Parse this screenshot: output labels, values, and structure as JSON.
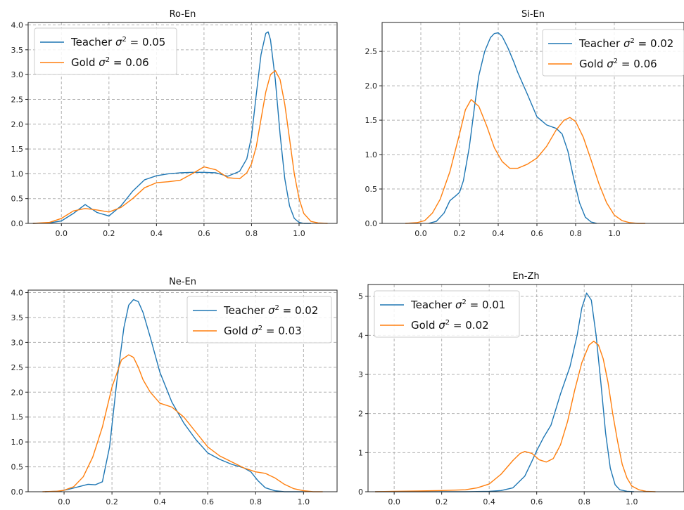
{
  "chart_data": [
    {
      "type": "line",
      "title": "Ro-En",
      "xlabel": "",
      "ylabel": "",
      "xlim": [
        -0.14,
        1.16
      ],
      "ylim": [
        0,
        4.05
      ],
      "xticks": [
        "0.0",
        "0.2",
        "0.4",
        "0.6",
        "0.8",
        "1.0"
      ],
      "yticks": [
        "0.0",
        "0.5",
        "1.0",
        "1.5",
        "2.0",
        "2.5",
        "3.0",
        "3.5",
        "4.0"
      ],
      "grid": true,
      "legend": "top-left",
      "series": [
        {
          "name": "Teacher",
          "legend_value": "= 0.05",
          "color": "#1f77b4",
          "x": [
            -0.12,
            -0.05,
            0.0,
            0.05,
            0.1,
            0.15,
            0.2,
            0.25,
            0.3,
            0.35,
            0.4,
            0.45,
            0.5,
            0.55,
            0.6,
            0.65,
            0.7,
            0.75,
            0.78,
            0.8,
            0.82,
            0.84,
            0.86,
            0.87,
            0.88,
            0.9,
            0.92,
            0.94,
            0.96,
            0.98,
            1.0,
            1.02,
            1.05
          ],
          "y": [
            0,
            0.01,
            0.05,
            0.2,
            0.38,
            0.22,
            0.15,
            0.35,
            0.65,
            0.88,
            0.96,
            1.0,
            1.02,
            1.03,
            1.03,
            1.02,
            0.95,
            1.05,
            1.3,
            1.75,
            2.6,
            3.4,
            3.83,
            3.86,
            3.7,
            2.9,
            1.8,
            0.9,
            0.35,
            0.1,
            0.02,
            0,
            0
          ]
        },
        {
          "name": "Gold",
          "legend_value": "= 0.06",
          "color": "#ff7f0e",
          "x": [
            -0.12,
            -0.05,
            0.0,
            0.05,
            0.1,
            0.15,
            0.2,
            0.25,
            0.3,
            0.35,
            0.4,
            0.45,
            0.5,
            0.55,
            0.6,
            0.65,
            0.7,
            0.75,
            0.78,
            0.8,
            0.82,
            0.84,
            0.86,
            0.88,
            0.9,
            0.92,
            0.94,
            0.96,
            0.98,
            1.0,
            1.02,
            1.05,
            1.08,
            1.12
          ],
          "y": [
            0,
            0.02,
            0.1,
            0.25,
            0.3,
            0.27,
            0.23,
            0.32,
            0.5,
            0.72,
            0.82,
            0.84,
            0.87,
            1.0,
            1.14,
            1.08,
            0.92,
            0.9,
            1.02,
            1.2,
            1.55,
            2.1,
            2.65,
            3.0,
            3.08,
            2.9,
            2.4,
            1.7,
            1.0,
            0.5,
            0.2,
            0.04,
            0.01,
            0
          ]
        }
      ]
    },
    {
      "type": "line",
      "title": "Si-En",
      "xlabel": "",
      "ylabel": "",
      "xlim": [
        -0.2,
        1.36
      ],
      "ylim": [
        0,
        2.92
      ],
      "xticks": [
        "0.0",
        "0.2",
        "0.4",
        "0.6",
        "0.8",
        "1.0"
      ],
      "yticks": [
        "0.0",
        "0.5",
        "1.0",
        "1.5",
        "2.0",
        "2.5"
      ],
      "grid": true,
      "legend": "top-right",
      "series": [
        {
          "name": "Teacher",
          "legend_value": "= 0.02",
          "color": "#1f77b4",
          "x": [
            0.04,
            0.08,
            0.12,
            0.15,
            0.18,
            0.2,
            0.22,
            0.25,
            0.28,
            0.3,
            0.33,
            0.36,
            0.38,
            0.4,
            0.42,
            0.45,
            0.48,
            0.5,
            0.55,
            0.6,
            0.65,
            0.7,
            0.73,
            0.76,
            0.79,
            0.82,
            0.85,
            0.88,
            0.91
          ],
          "y": [
            0,
            0.03,
            0.15,
            0.33,
            0.4,
            0.45,
            0.62,
            1.1,
            1.75,
            2.15,
            2.5,
            2.7,
            2.76,
            2.77,
            2.72,
            2.55,
            2.35,
            2.2,
            1.88,
            1.55,
            1.43,
            1.38,
            1.3,
            1.05,
            0.65,
            0.3,
            0.09,
            0.02,
            0
          ]
        },
        {
          "name": "Gold",
          "legend_value": "= 0.06",
          "color": "#ff7f0e",
          "x": [
            -0.08,
            -0.02,
            0.02,
            0.06,
            0.1,
            0.15,
            0.2,
            0.23,
            0.26,
            0.3,
            0.34,
            0.38,
            0.42,
            0.46,
            0.5,
            0.55,
            0.6,
            0.65,
            0.7,
            0.74,
            0.77,
            0.8,
            0.84,
            0.88,
            0.92,
            0.96,
            1.0,
            1.04,
            1.08,
            1.12,
            1.16
          ],
          "y": [
            0,
            0.01,
            0.04,
            0.15,
            0.35,
            0.75,
            1.3,
            1.65,
            1.8,
            1.7,
            1.42,
            1.1,
            0.9,
            0.8,
            0.8,
            0.86,
            0.95,
            1.12,
            1.36,
            1.5,
            1.54,
            1.48,
            1.25,
            0.92,
            0.58,
            0.3,
            0.12,
            0.04,
            0.01,
            0,
            0
          ]
        }
      ]
    },
    {
      "type": "line",
      "title": "Ne-En",
      "xlabel": "",
      "ylabel": "",
      "xlim": [
        -0.15,
        1.14
      ],
      "ylim": [
        0,
        4.05
      ],
      "xticks": [
        "0.0",
        "0.2",
        "0.4",
        "0.6",
        "0.8",
        "1.0"
      ],
      "yticks": [
        "0.0",
        "0.5",
        "1.0",
        "1.5",
        "2.0",
        "2.5",
        "3.0",
        "3.5",
        "4.0"
      ],
      "grid": true,
      "legend": "top-right",
      "series": [
        {
          "name": "Teacher",
          "legend_value": "= 0.02",
          "color": "#1f77b4",
          "x": [
            -0.08,
            -0.02,
            0.02,
            0.06,
            0.1,
            0.13,
            0.16,
            0.19,
            0.22,
            0.25,
            0.27,
            0.29,
            0.31,
            0.33,
            0.36,
            0.4,
            0.45,
            0.5,
            0.55,
            0.6,
            0.65,
            0.7,
            0.75,
            0.78,
            0.81,
            0.84,
            0.88,
            0.92,
            0.96,
            1.0
          ],
          "y": [
            0,
            0.01,
            0.05,
            0.1,
            0.15,
            0.14,
            0.2,
            0.9,
            2.2,
            3.3,
            3.75,
            3.86,
            3.82,
            3.6,
            3.1,
            2.4,
            1.8,
            1.38,
            1.05,
            0.78,
            0.65,
            0.55,
            0.48,
            0.4,
            0.22,
            0.08,
            0.02,
            0,
            0,
            0
          ]
        },
        {
          "name": "Gold",
          "legend_value": "= 0.03",
          "color": "#ff7f0e",
          "x": [
            -0.09,
            -0.03,
            0.0,
            0.04,
            0.08,
            0.12,
            0.16,
            0.2,
            0.24,
            0.27,
            0.29,
            0.31,
            0.33,
            0.36,
            0.4,
            0.45,
            0.5,
            0.55,
            0.6,
            0.65,
            0.7,
            0.75,
            0.8,
            0.84,
            0.88,
            0.92,
            0.96,
            1.0,
            1.04,
            1.08
          ],
          "y": [
            0,
            0.01,
            0.03,
            0.1,
            0.3,
            0.7,
            1.3,
            2.1,
            2.65,
            2.75,
            2.7,
            2.5,
            2.25,
            2.0,
            1.78,
            1.7,
            1.5,
            1.2,
            0.9,
            0.72,
            0.6,
            0.48,
            0.4,
            0.37,
            0.28,
            0.15,
            0.06,
            0.02,
            0,
            0
          ]
        }
      ]
    },
    {
      "type": "line",
      "title": "En-Zh",
      "xlabel": "",
      "ylabel": "",
      "xlim": [
        -0.11,
        1.22
      ],
      "ylim": [
        0,
        5.3
      ],
      "xticks": [
        "0.0",
        "0.2",
        "0.4",
        "0.6",
        "0.8",
        "1.0"
      ],
      "yticks": [
        "0",
        "1",
        "2",
        "3",
        "4",
        "5"
      ],
      "grid": true,
      "legend": "top-left",
      "series": [
        {
          "name": "Teacher",
          "legend_value": "= 0.01",
          "color": "#1f77b4",
          "x": [
            -0.08,
            0.0,
            0.1,
            0.2,
            0.3,
            0.4,
            0.45,
            0.5,
            0.55,
            0.58,
            0.6,
            0.63,
            0.66,
            0.7,
            0.74,
            0.77,
            0.79,
            0.81,
            0.83,
            0.85,
            0.87,
            0.89,
            0.91,
            0.93,
            0.95,
            0.98,
            1.01
          ],
          "y": [
            0,
            0,
            0,
            0,
            0,
            0.01,
            0.03,
            0.1,
            0.4,
            0.78,
            1.05,
            1.4,
            1.7,
            2.5,
            3.2,
            4.0,
            4.7,
            5.08,
            4.9,
            4.0,
            2.8,
            1.5,
            0.6,
            0.18,
            0.05,
            0.01,
            0
          ]
        },
        {
          "name": "Gold",
          "legend_value": "= 0.02",
          "color": "#ff7f0e",
          "x": [
            -0.08,
            0.0,
            0.1,
            0.2,
            0.3,
            0.35,
            0.4,
            0.45,
            0.5,
            0.53,
            0.55,
            0.58,
            0.61,
            0.64,
            0.67,
            0.7,
            0.73,
            0.76,
            0.79,
            0.82,
            0.84,
            0.86,
            0.88,
            0.9,
            0.92,
            0.94,
            0.96,
            0.98,
            1.0,
            1.03,
            1.06,
            1.1
          ],
          "y": [
            0,
            0.01,
            0.02,
            0.03,
            0.05,
            0.1,
            0.2,
            0.45,
            0.8,
            0.98,
            1.03,
            0.98,
            0.82,
            0.76,
            0.85,
            1.2,
            1.8,
            2.6,
            3.3,
            3.75,
            3.85,
            3.75,
            3.4,
            2.8,
            2.0,
            1.3,
            0.7,
            0.35,
            0.15,
            0.05,
            0.01,
            0
          ]
        }
      ]
    }
  ]
}
